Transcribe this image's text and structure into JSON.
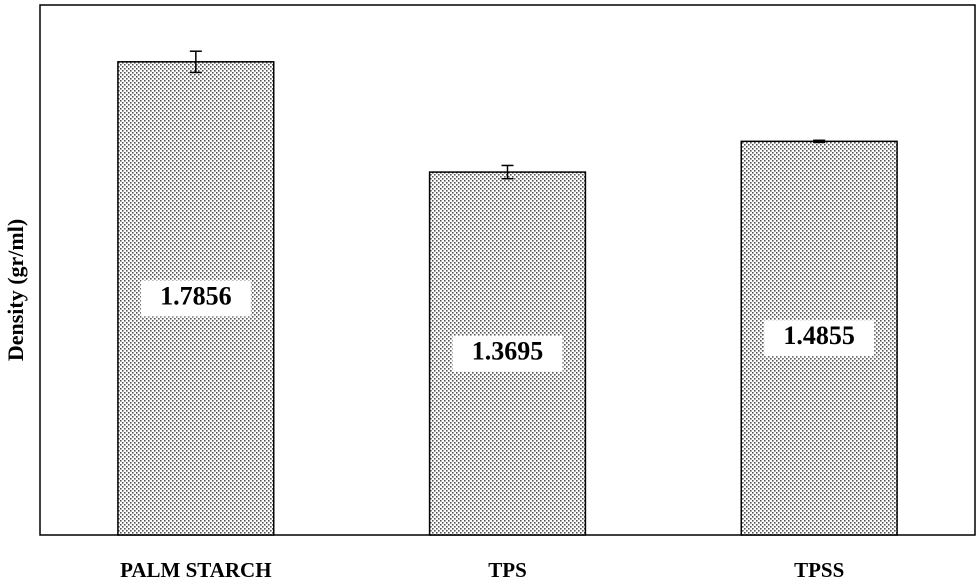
{
  "chart_data": {
    "type": "bar",
    "y_label": "Density (gr/ml)",
    "categories": [
      "PALM STARCH",
      "TPS",
      "TPSS"
    ],
    "values": [
      1.7856,
      1.3695,
      1.4855
    ],
    "errors": [
      0.04,
      0.025,
      0.004
    ],
    "color": "#555555",
    "ylim": [
      0,
      2
    ]
  }
}
